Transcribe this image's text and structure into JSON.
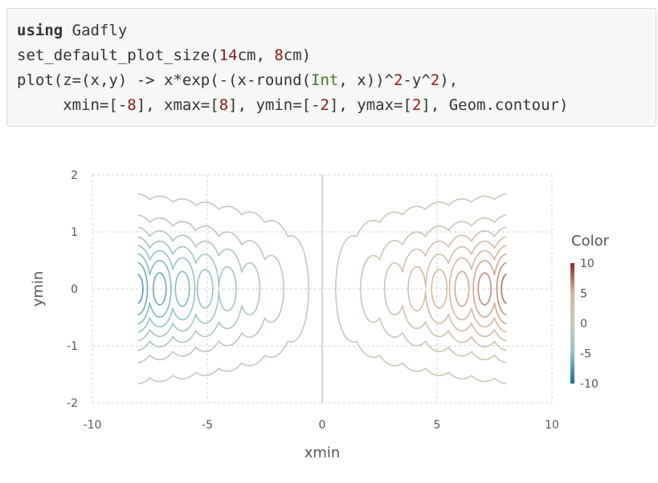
{
  "code": {
    "lines": [
      [
        {
          "t": "using",
          "c": "kw"
        },
        {
          "t": " Gadfly",
          "c": ""
        }
      ],
      [
        {
          "t": "set_default_plot_size(",
          "c": ""
        },
        {
          "t": "14",
          "c": "num"
        },
        {
          "t": "cm, ",
          "c": ""
        },
        {
          "t": "8",
          "c": "num"
        },
        {
          "t": "cm)",
          "c": ""
        }
      ],
      [
        {
          "t": "plot(z=(x,y) -> x*exp(-(x-round(",
          "c": ""
        },
        {
          "t": "Int",
          "c": "type"
        },
        {
          "t": ", x))^",
          "c": ""
        },
        {
          "t": "2",
          "c": "num"
        },
        {
          "t": "-y^",
          "c": ""
        },
        {
          "t": "2",
          "c": "num"
        },
        {
          "t": "),",
          "c": ""
        }
      ],
      [
        {
          "t": "     xmin=[-",
          "c": ""
        },
        {
          "t": "8",
          "c": "num"
        },
        {
          "t": "], xmax=[",
          "c": ""
        },
        {
          "t": "8",
          "c": "num"
        },
        {
          "t": "], ymin=[-",
          "c": ""
        },
        {
          "t": "2",
          "c": "num"
        },
        {
          "t": "], ymax=[",
          "c": ""
        },
        {
          "t": "2",
          "c": "num"
        },
        {
          "t": "], Geom.contour)",
          "c": ""
        }
      ]
    ]
  },
  "chart_data": {
    "type": "contour",
    "function": "z = x*exp(-(x-round(Int, x))^2 - y^2)",
    "xlabel": "xmin",
    "ylabel": "ymin",
    "xlim": [
      -10,
      10
    ],
    "ylim": [
      -2,
      2
    ],
    "x_domain": [
      -8,
      8
    ],
    "y_domain": [
      -2,
      2
    ],
    "xticks": [
      "-10",
      "-5",
      "0",
      "5",
      "10"
    ],
    "yticks": [
      "2",
      "1",
      "0",
      "-1",
      "-2"
    ],
    "grid": true,
    "legend": {
      "title": "Color",
      "placement": "right",
      "ticks": [
        "10",
        "5",
        "0",
        "-5",
        "-10"
      ],
      "range": [
        -10,
        10
      ]
    },
    "colors": {
      "negative": "#1f6e8c",
      "negative_mid": "#8fc2c7",
      "neutral": "#c9cbb9",
      "positive_mid": "#d5b79e",
      "positive": "#8a2a2b"
    }
  }
}
